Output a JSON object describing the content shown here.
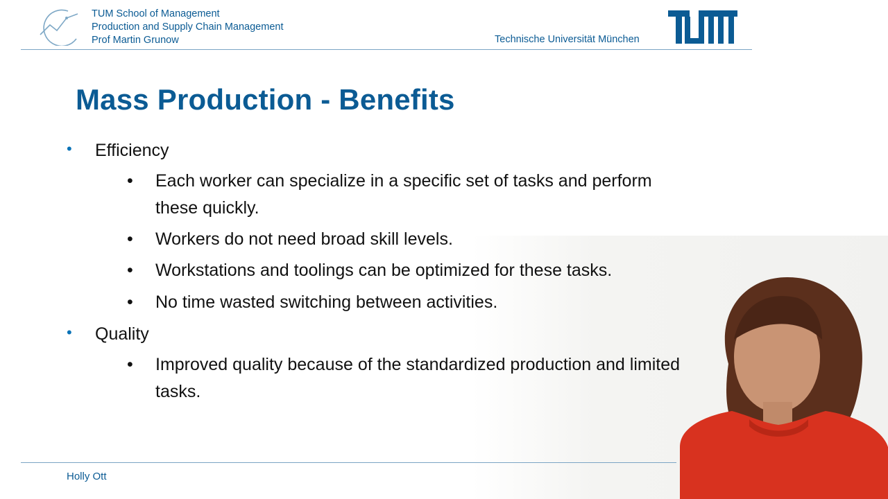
{
  "header": {
    "school": "TUM School of Management",
    "chair": "Production and Supply Chain Management",
    "professor": "Prof Martin Grunow",
    "university": "Technische Universität München"
  },
  "slide": {
    "title": "Mass Production - Benefits",
    "sections": [
      {
        "heading": "Efficiency",
        "items": [
          "Each worker can specialize in a specific set of tasks and perform these quickly.",
          "Workers do not need broad skill levels.",
          "Workstations and toolings can be optimized for these tasks.",
          "No time wasted switching between activities."
        ]
      },
      {
        "heading": "Quality",
        "items": [
          "Improved quality because of the standardized production and limited tasks."
        ]
      }
    ]
  },
  "footer": {
    "presenter": "Holly Ott"
  },
  "icons": {
    "left_logo": "tum-management-logo-icon",
    "right_logo": "tum-logo-icon",
    "bullet": "bullet-dot-icon"
  },
  "colors": {
    "brand_blue": "#0b5b94",
    "bullet_blue": "#0b73b7",
    "presenter_red": "#d8321f"
  }
}
